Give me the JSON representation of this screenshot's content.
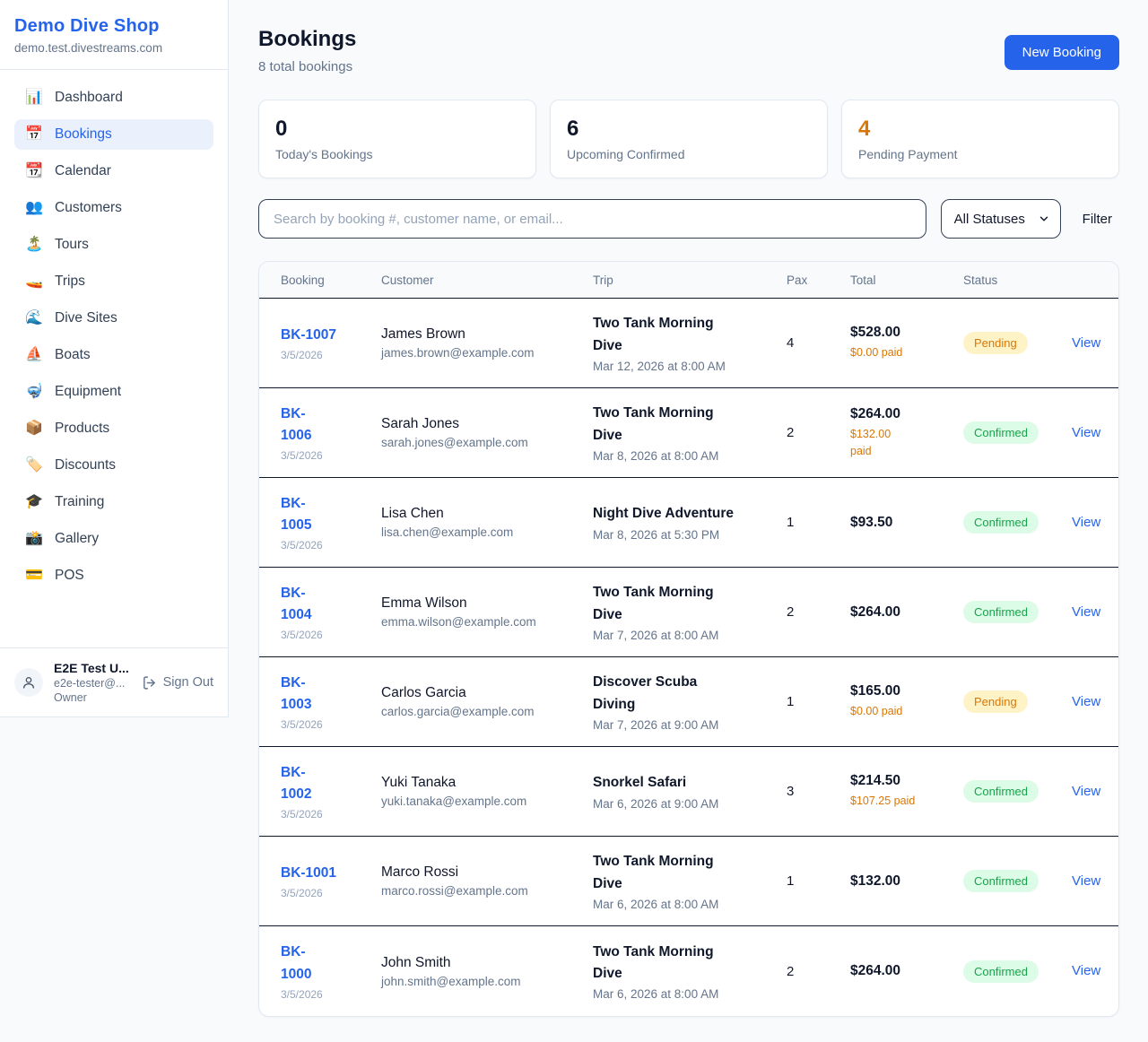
{
  "theme": {
    "accent": "#2563eb",
    "pending_bg": "#fef3c7",
    "pending_text": "#d97706",
    "confirmed_bg": "#dcfce7",
    "confirmed_text": "#16a34a",
    "orange_stat": "#d97706"
  },
  "sidebar": {
    "shop_name": "Demo Dive Shop",
    "shop_domain": "demo.test.divestreams.com",
    "items": [
      {
        "icon": "📊",
        "icon_name": "bar-chart-icon",
        "label": "Dashboard",
        "active": false
      },
      {
        "icon": "📅",
        "icon_name": "calendar-icon",
        "label": "Bookings",
        "active": true
      },
      {
        "icon": "📆",
        "icon_name": "tear-off-calendar-icon",
        "label": "Calendar",
        "active": false
      },
      {
        "icon": "👥",
        "icon_name": "people-icon",
        "label": "Customers",
        "active": false
      },
      {
        "icon": "🏝️",
        "icon_name": "island-icon",
        "label": "Tours",
        "active": false
      },
      {
        "icon": "🚤",
        "icon_name": "speedboat-icon",
        "label": "Trips",
        "active": false
      },
      {
        "icon": "🌊",
        "icon_name": "wave-icon",
        "label": "Dive Sites",
        "active": false
      },
      {
        "icon": "⛵",
        "icon_name": "sailboat-icon",
        "label": "Boats",
        "active": false
      },
      {
        "icon": "🤿",
        "icon_name": "diving-mask-icon",
        "label": "Equipment",
        "active": false
      },
      {
        "icon": "📦",
        "icon_name": "package-icon",
        "label": "Products",
        "active": false
      },
      {
        "icon": "🏷️",
        "icon_name": "label-tag-icon",
        "label": "Discounts",
        "active": false
      },
      {
        "icon": "🎓",
        "icon_name": "graduation-cap-icon",
        "label": "Training",
        "active": false
      },
      {
        "icon": "📸",
        "icon_name": "camera-flash-icon",
        "label": "Gallery",
        "active": false
      },
      {
        "icon": "💳",
        "icon_name": "credit-card-icon",
        "label": "POS",
        "active": false
      }
    ],
    "user": {
      "name": "E2E Test U...",
      "email": "e2e-tester@...",
      "role": "Owner",
      "sign_out_label": "Sign Out"
    }
  },
  "header": {
    "title": "Bookings",
    "subtitle": "8 total bookings",
    "new_booking_label": "New Booking"
  },
  "stats": [
    {
      "value": "0",
      "label": "Today's Bookings",
      "variant": "dark"
    },
    {
      "value": "6",
      "label": "Upcoming Confirmed",
      "variant": "dark"
    },
    {
      "value": "4",
      "label": "Pending Payment",
      "variant": "orange"
    }
  ],
  "filters": {
    "search_placeholder": "Search by booking #, customer name, or email...",
    "status_selected": "All Statuses",
    "filter_label": "Filter"
  },
  "table": {
    "columns": [
      "Booking",
      "Customer",
      "Trip",
      "Pax",
      "Total",
      "Status"
    ],
    "view_label": "View",
    "rows": [
      {
        "id": "BK-1007",
        "date": "3/5/2026",
        "customer": "James Brown",
        "email": "james.brown@example.com",
        "trip": "Two Tank Morning\nDive",
        "trip_datetime": "Mar 12, 2026 at 8:00 AM",
        "pax": "4",
        "total": "$528.00",
        "paid": "$0.00 paid",
        "status": "Pending",
        "status_variant": "pending"
      },
      {
        "id": "BK-\n1006",
        "date": "3/5/2026",
        "customer": "Sarah Jones",
        "email": "sarah.jones@example.com",
        "trip": "Two Tank Morning\nDive",
        "trip_datetime": "Mar 8, 2026 at 8:00 AM",
        "pax": "2",
        "total": "$264.00",
        "paid": "$132.00\npaid",
        "status": "Confirmed",
        "status_variant": "confirmed"
      },
      {
        "id": "BK-\n1005",
        "date": "3/5/2026",
        "customer": "Lisa Chen",
        "email": "lisa.chen@example.com",
        "trip": "Night Dive Adventure",
        "trip_datetime": "Mar 8, 2026 at 5:30 PM",
        "pax": "1",
        "total": "$93.50",
        "paid": null,
        "status": "Confirmed",
        "status_variant": "confirmed"
      },
      {
        "id": "BK-\n1004",
        "date": "3/5/2026",
        "customer": "Emma Wilson",
        "email": "emma.wilson@example.com",
        "trip": "Two Tank Morning\nDive",
        "trip_datetime": "Mar 7, 2026 at 8:00 AM",
        "pax": "2",
        "total": "$264.00",
        "paid": null,
        "status": "Confirmed",
        "status_variant": "confirmed"
      },
      {
        "id": "BK-\n1003",
        "date": "3/5/2026",
        "customer": "Carlos Garcia",
        "email": "carlos.garcia@example.com",
        "trip": "Discover Scuba\nDiving",
        "trip_datetime": "Mar 7, 2026 at 9:00 AM",
        "pax": "1",
        "total": "$165.00",
        "paid": "$0.00 paid",
        "status": "Pending",
        "status_variant": "pending"
      },
      {
        "id": "BK-\n1002",
        "date": "3/5/2026",
        "customer": "Yuki Tanaka",
        "email": "yuki.tanaka@example.com",
        "trip": "Snorkel Safari",
        "trip_datetime": "Mar 6, 2026 at 9:00 AM",
        "pax": "3",
        "total": "$214.50",
        "paid": "$107.25 paid",
        "status": "Confirmed",
        "status_variant": "confirmed"
      },
      {
        "id": "BK-1001",
        "date": "3/5/2026",
        "customer": "Marco Rossi",
        "email": "marco.rossi@example.com",
        "trip": "Two Tank Morning\nDive",
        "trip_datetime": "Mar 6, 2026 at 8:00 AM",
        "pax": "1",
        "total": "$132.00",
        "paid": null,
        "status": "Confirmed",
        "status_variant": "confirmed"
      },
      {
        "id": "BK-\n1000",
        "date": "3/5/2026",
        "customer": "John Smith",
        "email": "john.smith@example.com",
        "trip": "Two Tank Morning\nDive",
        "trip_datetime": "Mar 6, 2026 at 8:00 AM",
        "pax": "2",
        "total": "$264.00",
        "paid": null,
        "status": "Confirmed",
        "status_variant": "confirmed"
      }
    ]
  }
}
